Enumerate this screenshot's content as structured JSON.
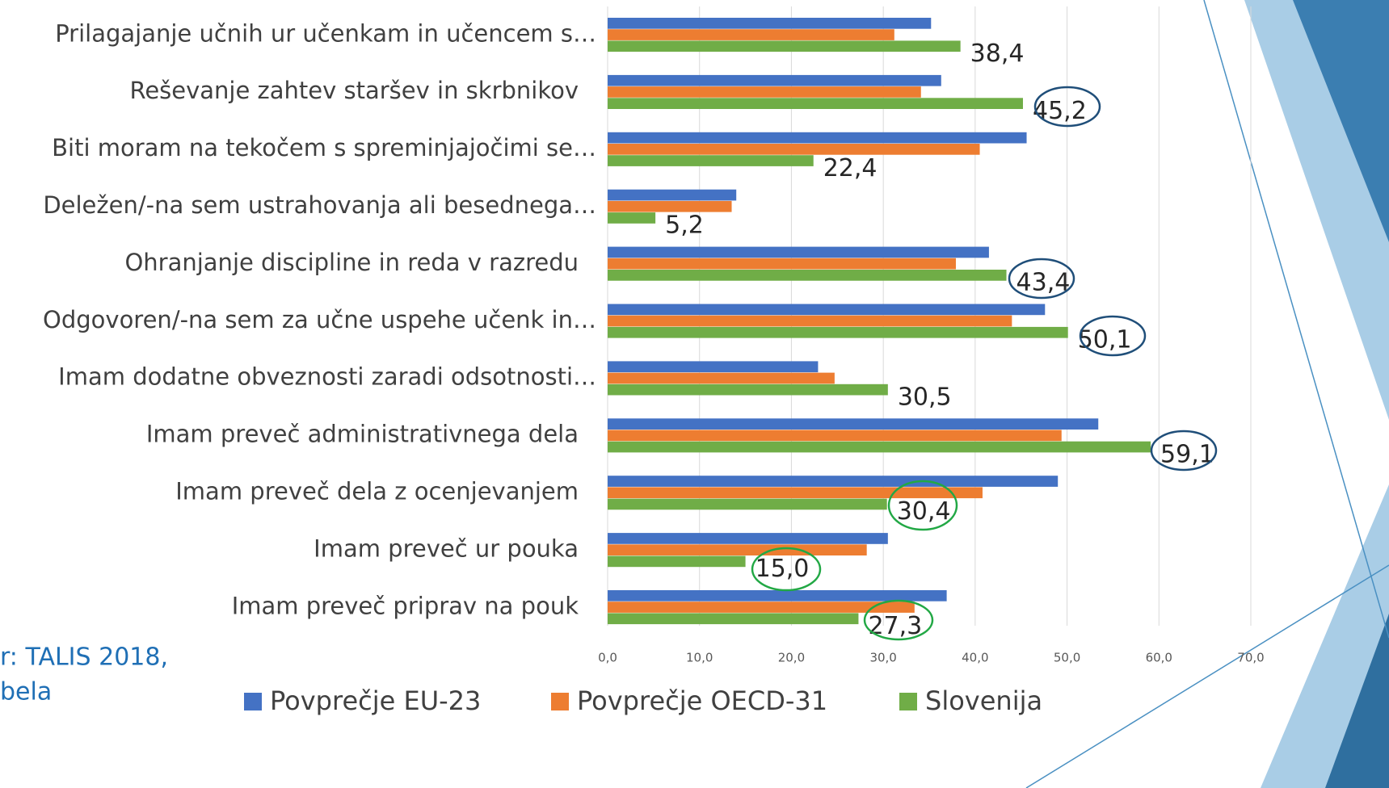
{
  "chart_data": {
    "type": "hbar",
    "categories": [
      "Prilagajanje učnih ur učenkam in učencem s…",
      "Reševanje zahtev staršev in skrbnikov",
      "Biti moram na tekočem s spreminjajočimi se…",
      "Deležen/-na sem ustrahovanja ali besednega…",
      "Ohranjanje discipline in reda v razredu",
      "Odgovoren/-na sem za učne uspehe učenk in…",
      "Imam dodatne obveznosti zaradi odsotnosti…",
      "Imam preveč administrativnega dela",
      "Imam preveč dela z ocenjevanjem",
      "Imam preveč ur pouka",
      "Imam preveč priprav na pouk"
    ],
    "series": [
      {
        "name": "Povprečje EU-23",
        "color": "#4472c4",
        "values": [
          35.2,
          36.3,
          45.6,
          14.0,
          41.5,
          47.6,
          22.9,
          53.4,
          49.0,
          30.5,
          36.9
        ]
      },
      {
        "name": "Povprečje OECD-31",
        "color": "#ed7d31",
        "values": [
          31.2,
          34.1,
          40.5,
          13.5,
          37.9,
          44.0,
          24.7,
          49.4,
          40.8,
          28.2,
          33.4
        ]
      },
      {
        "name": "Slovenija",
        "color": "#70ad47",
        "values": [
          38.4,
          45.2,
          22.4,
          5.2,
          43.4,
          50.1,
          30.5,
          59.1,
          30.4,
          15.0,
          27.3
        ],
        "value_labels": [
          "38,4",
          "45,2",
          "22,4",
          "5,2",
          "43,4",
          "50,1",
          "30,5",
          "59,1",
          "30,4",
          "15,0",
          "27,3"
        ]
      }
    ],
    "xlim": [
      0,
      70
    ],
    "xticks": [
      {
        "value": 0,
        "label": "0,0"
      },
      {
        "value": 10,
        "label": "10,0"
      },
      {
        "value": 20,
        "label": "20,0"
      },
      {
        "value": 30,
        "label": "30,0"
      },
      {
        "value": 40,
        "label": "40,0"
      },
      {
        "value": 50,
        "label": "50,0"
      },
      {
        "value": 60,
        "label": "60,0"
      },
      {
        "value": 70,
        "label": "70,0"
      }
    ],
    "grid": true,
    "legend": "bottom",
    "source_lines": [
      "r: TALIS 2018,",
      "bela"
    ]
  }
}
